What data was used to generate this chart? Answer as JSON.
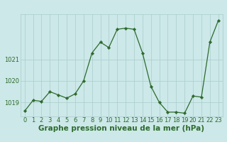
{
  "hours": [
    0,
    1,
    2,
    3,
    4,
    5,
    6,
    7,
    8,
    9,
    10,
    11,
    12,
    13,
    14,
    15,
    16,
    17,
    18,
    19,
    20,
    21,
    22,
    23
  ],
  "pressure": [
    1018.6,
    1019.1,
    1019.05,
    1019.5,
    1019.35,
    1019.2,
    1019.4,
    1020.0,
    1021.3,
    1021.8,
    1021.55,
    1022.4,
    1022.45,
    1022.4,
    1021.3,
    1019.75,
    1019.0,
    1018.55,
    1018.55,
    1018.5,
    1019.3,
    1019.25,
    1021.8,
    1022.8
  ],
  "ylim_min": 1018.35,
  "ylim_max": 1023.1,
  "yticks": [
    1019,
    1020,
    1021
  ],
  "ytick_labels": [
    "1019",
    "1020",
    "1021"
  ],
  "bg_color": "#cce8e8",
  "line_color": "#2d6a2d",
  "marker_color": "#2d6a2d",
  "grid_color": "#aacccc",
  "axis_label_color": "#2d6a2d",
  "title": "Graphe pression niveau de la mer (hPa)",
  "title_fontsize": 7.5,
  "tick_fontsize": 6.0,
  "top_label": "1021"
}
